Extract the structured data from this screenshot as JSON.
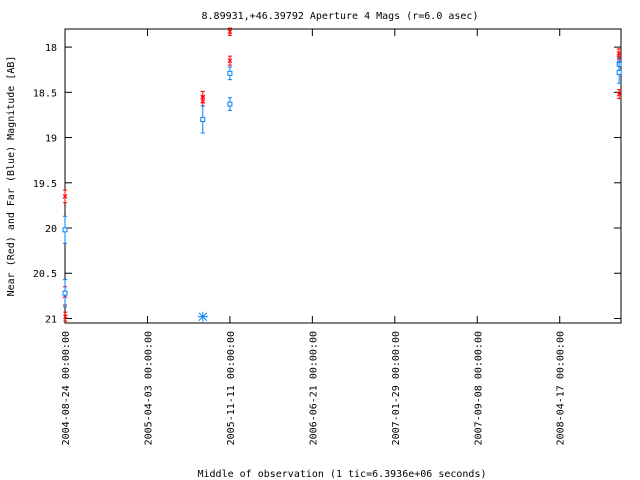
{
  "chart_data": {
    "type": "scatter",
    "title": "8.89931,+46.39792   Aperture 4 Mags (r=6.0 asec)",
    "xlabel": "Middle of observation (1 tic=6.3936e+06 seconds)",
    "ylabel": "Near (Red) and Far (Blue) Magnitude [AB]",
    "x_ticks": [
      "2004-08-24 00:00:00",
      "2005-04-03 00:00:00",
      "2005-11-11 00:00:00",
      "2006-06-21 00:00:00",
      "2007-01-29 00:00:00",
      "2007-09-08 00:00:00",
      "2008-04-17 00:00:00"
    ],
    "y_ticks": [
      "18",
      "18.5",
      "19",
      "19.5",
      "20",
      "20.5",
      "21"
    ],
    "xlim": [
      "2004-08-24",
      "2008-09-29"
    ],
    "ylim": [
      21.05,
      17.8
    ],
    "inverted_y": true,
    "grid": false,
    "legend": "none",
    "series": [
      {
        "color": "#ff0000",
        "marker": "cross",
        "points": [
          {
            "x": "2004-08-24",
            "y": 19.65,
            "err": 0.07
          },
          {
            "x": "2004-08-24",
            "y": 20.75,
            "err": 0.1
          },
          {
            "x": "2004-08-25",
            "y": 20.98,
            "err": 0.05
          },
          {
            "x": "2005-08-30",
            "y": 18.55,
            "err": 0.06
          },
          {
            "x": "2005-08-30",
            "y": 18.6,
            "err": 0.05
          },
          {
            "x": "2005-11-11",
            "y": 17.83,
            "err": 0.04
          },
          {
            "x": "2005-11-11",
            "y": 18.15,
            "err": 0.05
          },
          {
            "x": "2008-09-23",
            "y": 18.07,
            "err": 0.05
          },
          {
            "x": "2008-09-24",
            "y": 18.12,
            "err": 0.04
          },
          {
            "x": "2008-09-24",
            "y": 18.52,
            "err": 0.05
          }
        ]
      },
      {
        "color": "#0080ff",
        "marker": "square",
        "points": [
          {
            "x": "2004-08-24",
            "y": 20.02,
            "err": 0.15
          },
          {
            "x": "2004-08-24",
            "y": 20.72,
            "err": 0.15
          },
          {
            "x": "2005-08-30",
            "y": 18.8,
            "err": 0.15
          },
          {
            "x": "2005-11-11",
            "y": 18.29,
            "err": 0.07
          },
          {
            "x": "2005-11-11",
            "y": 18.63,
            "err": 0.07
          },
          {
            "x": "2008-09-24",
            "y": 18.19,
            "err": 0.07
          },
          {
            "x": "2008-09-24",
            "y": 18.28,
            "err": 0.12
          }
        ]
      },
      {
        "color": "#0080ff",
        "marker": "asterisk",
        "points": [
          {
            "x": "2005-08-30",
            "y": 20.98
          }
        ]
      }
    ]
  }
}
